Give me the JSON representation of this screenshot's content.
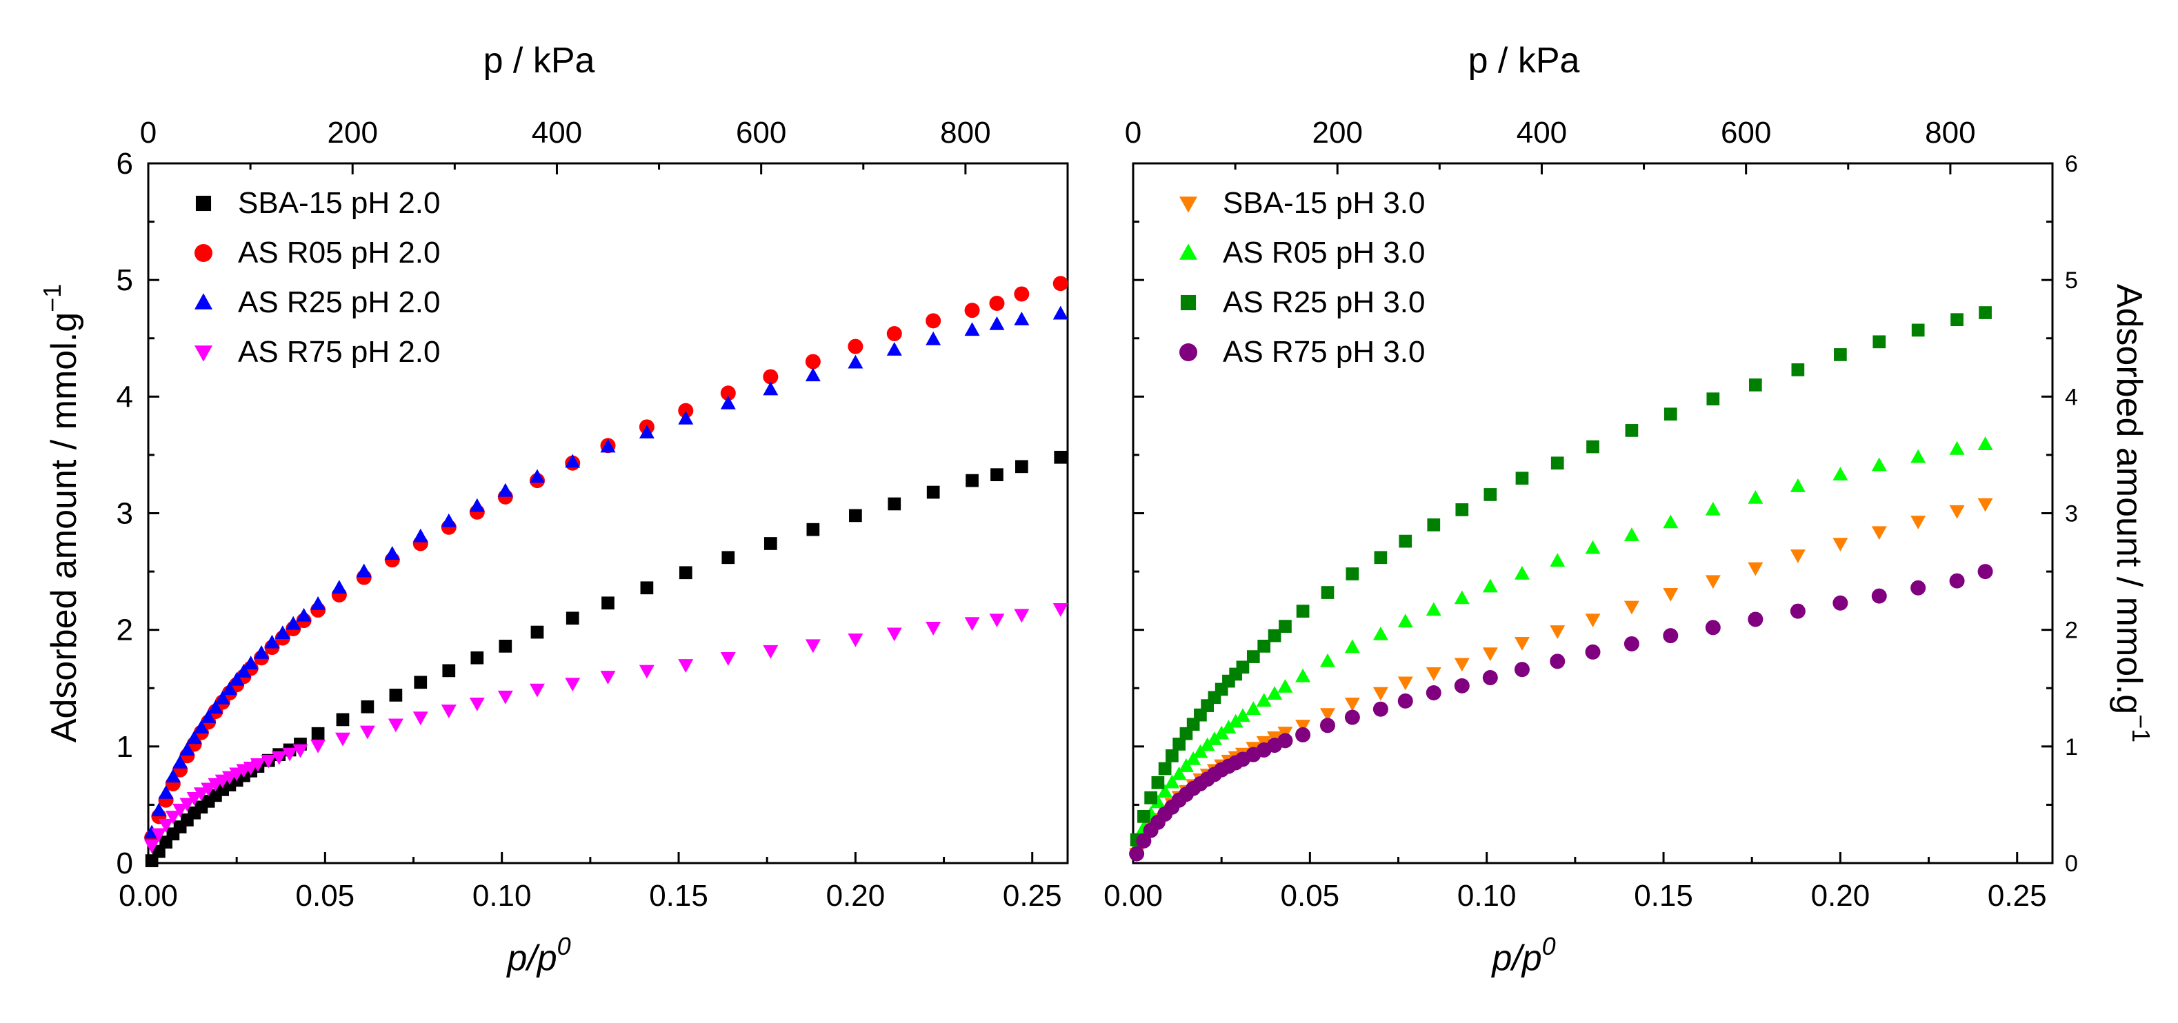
{
  "chart_data": [
    {
      "type": "scatter",
      "xlabel": "p/p0",
      "x_label_base": "p/p",
      "x_label_sup": "0",
      "x2label": "p / kPa",
      "ylabel": "Adsorbed amount / mmol.g",
      "ylabel_sup": "−1",
      "xlim": [
        0,
        0.26
      ],
      "ylim": [
        0,
        6
      ],
      "x2lim": [
        0,
        900
      ],
      "xticks": [
        "0.00",
        "0.05",
        "0.10",
        "0.15",
        "0.20",
        "0.25"
      ],
      "xtick_values": [
        0,
        0.05,
        0.1,
        0.15,
        0.2,
        0.25
      ],
      "yticks": [
        "0",
        "1",
        "2",
        "3",
        "4",
        "5",
        "6"
      ],
      "ytick_values": [
        0,
        1,
        2,
        3,
        4,
        5,
        6
      ],
      "x2ticks": [
        "0",
        "200",
        "400",
        "600",
        "800"
      ],
      "x2tick_values": [
        0,
        200,
        400,
        600,
        800
      ],
      "legend_position": "top-left",
      "series": [
        {
          "name": "SBA-15 pH 2.0",
          "marker": "square",
          "color": "#000000",
          "x": [
            0.001,
            0.003,
            0.005,
            0.007,
            0.009,
            0.011,
            0.013,
            0.015,
            0.017,
            0.019,
            0.021,
            0.023,
            0.025,
            0.027,
            0.029,
            0.031,
            0.034,
            0.037,
            0.04,
            0.043,
            0.048,
            0.055,
            0.062,
            0.07,
            0.077,
            0.085,
            0.093,
            0.101,
            0.11,
            0.12,
            0.13,
            0.141,
            0.152,
            0.164,
            0.176,
            0.188,
            0.2,
            0.211,
            0.222,
            0.233,
            0.24,
            0.247,
            0.258
          ],
          "y": [
            0.02,
            0.1,
            0.18,
            0.25,
            0.31,
            0.37,
            0.43,
            0.48,
            0.53,
            0.58,
            0.63,
            0.67,
            0.71,
            0.75,
            0.79,
            0.83,
            0.88,
            0.93,
            0.97,
            1.02,
            1.11,
            1.23,
            1.34,
            1.44,
            1.55,
            1.65,
            1.76,
            1.86,
            1.98,
            2.1,
            2.23,
            2.36,
            2.49,
            2.62,
            2.74,
            2.86,
            2.98,
            3.08,
            3.18,
            3.28,
            3.33,
            3.4,
            3.48
          ]
        },
        {
          "name": "AS R05 pH 2.0",
          "marker": "circle",
          "color": "#ff0000",
          "x": [
            0.001,
            0.003,
            0.005,
            0.007,
            0.009,
            0.011,
            0.013,
            0.015,
            0.017,
            0.019,
            0.021,
            0.023,
            0.025,
            0.027,
            0.029,
            0.032,
            0.035,
            0.038,
            0.041,
            0.044,
            0.048,
            0.054,
            0.061,
            0.069,
            0.077,
            0.085,
            0.093,
            0.101,
            0.11,
            0.12,
            0.13,
            0.141,
            0.152,
            0.164,
            0.176,
            0.188,
            0.2,
            0.211,
            0.222,
            0.233,
            0.24,
            0.247,
            0.258
          ],
          "y": [
            0.22,
            0.4,
            0.54,
            0.68,
            0.8,
            0.92,
            1.02,
            1.12,
            1.21,
            1.3,
            1.38,
            1.46,
            1.53,
            1.6,
            1.67,
            1.76,
            1.85,
            1.93,
            2.01,
            2.08,
            2.17,
            2.3,
            2.45,
            2.6,
            2.74,
            2.88,
            3.01,
            3.14,
            3.28,
            3.43,
            3.58,
            3.74,
            3.88,
            4.03,
            4.17,
            4.3,
            4.43,
            4.54,
            4.65,
            4.74,
            4.8,
            4.88,
            4.97
          ]
        },
        {
          "name": "AS R25 pH 2.0",
          "marker": "triangle-up",
          "color": "#0000ff",
          "x": [
            0.001,
            0.003,
            0.005,
            0.007,
            0.009,
            0.011,
            0.013,
            0.015,
            0.017,
            0.019,
            0.021,
            0.023,
            0.025,
            0.027,
            0.029,
            0.032,
            0.035,
            0.038,
            0.041,
            0.044,
            0.048,
            0.054,
            0.061,
            0.069,
            0.077,
            0.085,
            0.093,
            0.101,
            0.11,
            0.12,
            0.13,
            0.141,
            0.152,
            0.164,
            0.176,
            0.188,
            0.2,
            0.211,
            0.222,
            0.233,
            0.24,
            0.247,
            0.258
          ],
          "y": [
            0.26,
            0.45,
            0.6,
            0.74,
            0.86,
            0.97,
            1.07,
            1.16,
            1.25,
            1.33,
            1.41,
            1.49,
            1.57,
            1.64,
            1.71,
            1.8,
            1.89,
            1.97,
            2.05,
            2.12,
            2.22,
            2.36,
            2.5,
            2.65,
            2.8,
            2.93,
            3.06,
            3.19,
            3.31,
            3.44,
            3.57,
            3.69,
            3.81,
            3.94,
            4.06,
            4.18,
            4.29,
            4.4,
            4.49,
            4.57,
            4.62,
            4.66,
            4.71
          ]
        },
        {
          "name": "AS R75 pH 2.0",
          "marker": "triangle-down",
          "color": "#ff00ff",
          "x": [
            0.001,
            0.003,
            0.005,
            0.007,
            0.009,
            0.011,
            0.013,
            0.015,
            0.017,
            0.019,
            0.021,
            0.023,
            0.025,
            0.027,
            0.029,
            0.031,
            0.034,
            0.037,
            0.04,
            0.043,
            0.048,
            0.055,
            0.062,
            0.07,
            0.077,
            0.085,
            0.093,
            0.101,
            0.11,
            0.12,
            0.13,
            0.141,
            0.152,
            0.164,
            0.176,
            0.188,
            0.2,
            0.211,
            0.222,
            0.233,
            0.24,
            0.247,
            0.258
          ],
          "y": [
            0.15,
            0.25,
            0.33,
            0.4,
            0.46,
            0.51,
            0.56,
            0.6,
            0.64,
            0.68,
            0.71,
            0.74,
            0.77,
            0.8,
            0.82,
            0.85,
            0.88,
            0.91,
            0.94,
            0.97,
            1.01,
            1.07,
            1.13,
            1.19,
            1.25,
            1.31,
            1.37,
            1.43,
            1.49,
            1.54,
            1.6,
            1.65,
            1.7,
            1.76,
            1.82,
            1.87,
            1.92,
            1.97,
            2.02,
            2.06,
            2.09,
            2.13,
            2.18
          ]
        }
      ]
    },
    {
      "type": "scatter",
      "xlabel": "p/p0",
      "x_label_base": "p/p",
      "x_label_sup": "0",
      "x2label": "p / kPa",
      "ylabel": "Adsorbed amount / mmol.g",
      "ylabel_sup": "−1",
      "xlim": [
        0,
        0.26
      ],
      "ylim": [
        0,
        6
      ],
      "x2lim": [
        0,
        900
      ],
      "xticks": [
        "0.00",
        "0.05",
        "0.10",
        "0.15",
        "0.20",
        "0.25"
      ],
      "xtick_values": [
        0,
        0.05,
        0.1,
        0.15,
        0.2,
        0.25
      ],
      "yticks": [
        "0",
        "1",
        "2",
        "3",
        "4",
        "5",
        "6"
      ],
      "ytick_values": [
        0,
        1,
        2,
        3,
        4,
        5,
        6
      ],
      "x2ticks": [
        "0",
        "200",
        "400",
        "600",
        "800"
      ],
      "x2tick_values": [
        0,
        200,
        400,
        600,
        800
      ],
      "legend_position": "top-left",
      "series": [
        {
          "name": "SBA-15 pH 3.0",
          "marker": "triangle-down",
          "color": "#ff8000",
          "x": [
            0.001,
            0.003,
            0.005,
            0.007,
            0.009,
            0.011,
            0.013,
            0.015,
            0.017,
            0.019,
            0.021,
            0.023,
            0.025,
            0.027,
            0.029,
            0.031,
            0.034,
            0.037,
            0.04,
            0.043,
            0.048,
            0.055,
            0.062,
            0.07,
            0.077,
            0.085,
            0.093,
            0.101,
            0.11,
            0.12,
            0.13,
            0.141,
            0.152,
            0.164,
            0.176,
            0.188,
            0.2,
            0.211,
            0.222,
            0.233,
            0.241
          ],
          "y": [
            0.08,
            0.2,
            0.3,
            0.38,
            0.45,
            0.51,
            0.57,
            0.62,
            0.67,
            0.72,
            0.76,
            0.8,
            0.84,
            0.88,
            0.91,
            0.94,
            0.99,
            1.04,
            1.08,
            1.12,
            1.18,
            1.28,
            1.37,
            1.46,
            1.55,
            1.63,
            1.71,
            1.8,
            1.89,
            1.99,
            2.09,
            2.2,
            2.31,
            2.42,
            2.53,
            2.64,
            2.74,
            2.84,
            2.93,
            3.02,
            3.08
          ]
        },
        {
          "name": "AS R05 pH 3.0",
          "marker": "triangle-up",
          "color": "#00ff00",
          "x": [
            0.001,
            0.003,
            0.005,
            0.007,
            0.009,
            0.011,
            0.013,
            0.015,
            0.017,
            0.019,
            0.021,
            0.023,
            0.025,
            0.027,
            0.029,
            0.031,
            0.034,
            0.037,
            0.04,
            0.043,
            0.048,
            0.055,
            0.062,
            0.07,
            0.077,
            0.085,
            0.093,
            0.101,
            0.11,
            0.12,
            0.13,
            0.141,
            0.152,
            0.164,
            0.176,
            0.188,
            0.2,
            0.211,
            0.222,
            0.233,
            0.241
          ],
          "y": [
            0.14,
            0.3,
            0.42,
            0.52,
            0.61,
            0.69,
            0.76,
            0.83,
            0.89,
            0.95,
            1.01,
            1.06,
            1.11,
            1.16,
            1.21,
            1.26,
            1.32,
            1.39,
            1.45,
            1.51,
            1.6,
            1.73,
            1.85,
            1.96,
            2.07,
            2.17,
            2.27,
            2.37,
            2.48,
            2.59,
            2.7,
            2.81,
            2.92,
            3.03,
            3.13,
            3.23,
            3.33,
            3.41,
            3.48,
            3.55,
            3.59
          ]
        },
        {
          "name": "AS R25 pH 3.0",
          "marker": "square",
          "color": "#008000",
          "x": [
            0.001,
            0.003,
            0.005,
            0.007,
            0.009,
            0.011,
            0.013,
            0.015,
            0.017,
            0.019,
            0.021,
            0.023,
            0.025,
            0.027,
            0.029,
            0.031,
            0.034,
            0.037,
            0.04,
            0.043,
            0.048,
            0.055,
            0.062,
            0.07,
            0.077,
            0.085,
            0.093,
            0.101,
            0.11,
            0.12,
            0.13,
            0.141,
            0.152,
            0.164,
            0.176,
            0.188,
            0.2,
            0.211,
            0.222,
            0.233,
            0.241
          ],
          "y": [
            0.2,
            0.4,
            0.56,
            0.69,
            0.81,
            0.92,
            1.02,
            1.11,
            1.19,
            1.27,
            1.35,
            1.42,
            1.49,
            1.56,
            1.62,
            1.68,
            1.77,
            1.86,
            1.95,
            2.03,
            2.16,
            2.32,
            2.48,
            2.62,
            2.76,
            2.9,
            3.03,
            3.16,
            3.3,
            3.43,
            3.57,
            3.71,
            3.85,
            3.98,
            4.1,
            4.23,
            4.36,
            4.47,
            4.57,
            4.66,
            4.72
          ]
        },
        {
          "name": "AS R75 pH 3.0",
          "marker": "circle",
          "color": "#800080",
          "x": [
            0.001,
            0.003,
            0.005,
            0.007,
            0.009,
            0.011,
            0.013,
            0.015,
            0.017,
            0.019,
            0.021,
            0.023,
            0.025,
            0.027,
            0.029,
            0.031,
            0.034,
            0.037,
            0.04,
            0.043,
            0.048,
            0.055,
            0.062,
            0.07,
            0.077,
            0.085,
            0.093,
            0.101,
            0.11,
            0.12,
            0.13,
            0.141,
            0.152,
            0.164,
            0.176,
            0.188,
            0.2,
            0.211,
            0.222,
            0.233,
            0.241
          ],
          "y": [
            0.08,
            0.19,
            0.28,
            0.35,
            0.42,
            0.48,
            0.54,
            0.59,
            0.64,
            0.68,
            0.72,
            0.76,
            0.8,
            0.83,
            0.86,
            0.89,
            0.93,
            0.97,
            1.01,
            1.05,
            1.1,
            1.18,
            1.25,
            1.32,
            1.39,
            1.46,
            1.52,
            1.59,
            1.66,
            1.73,
            1.81,
            1.88,
            1.95,
            2.02,
            2.09,
            2.16,
            2.23,
            2.29,
            2.36,
            2.42,
            2.5
          ]
        }
      ]
    }
  ]
}
